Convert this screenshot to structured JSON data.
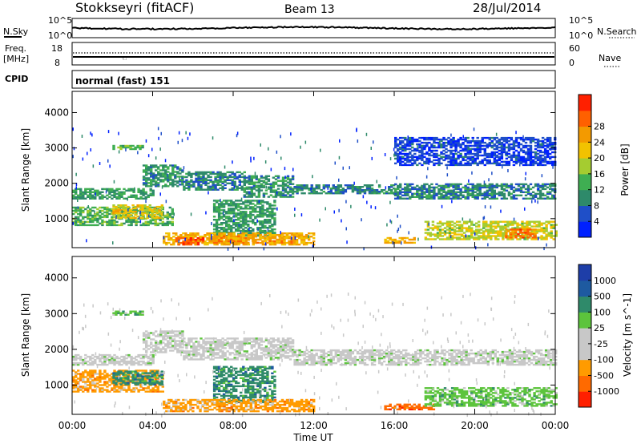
{
  "header": {
    "station": "Stokkseyri (fitACF)",
    "beam": "Beam 13",
    "date": "28/Jul/2014"
  },
  "noise_panel": {
    "left_label": "N.Sky",
    "right_label": "N.Search",
    "ticks": [
      "10^5",
      "10^0"
    ]
  },
  "freq_panel": {
    "left_label": "Freq.",
    "left_unit": "[MHz]",
    "left_ticks": [
      "18",
      "8"
    ],
    "right_label": "Nave",
    "right_ticks": [
      "60",
      "0"
    ],
    "cpid_label": "CPID"
  },
  "mode_text": "normal (fast) 151",
  "x_axis": {
    "label": "Time UT",
    "ticks": [
      "00:00",
      "04:00",
      "08:00",
      "12:00",
      "16:00",
      "20:00",
      "00:00"
    ]
  },
  "chart_data": [
    {
      "type": "heatmap",
      "title": "",
      "xlabel": "Time UT",
      "ylabel": "Slant Range [km]",
      "x": [
        0,
        24
      ],
      "ylim": [
        180,
        4600
      ],
      "yticks": [
        "1000",
        "2000",
        "3000",
        "4000"
      ],
      "colorbar": {
        "label": "Power [dB]",
        "ticks": [
          "4",
          "8",
          "12",
          "16",
          "20",
          "24",
          "28"
        ],
        "range": [
          0,
          30
        ],
        "colors": [
          "#0020ff",
          "#1f4fc8",
          "#2e8a6a",
          "#3fae52",
          "#a5cc30",
          "#f2c200",
          "#f39a00",
          "#ff6000",
          "#ff2000"
        ]
      },
      "bands": [
        {
          "t0": 0.0,
          "t1": 4.0,
          "r0": 1550,
          "r1": 1850,
          "level": 10
        },
        {
          "t0": 3.5,
          "t1": 5.5,
          "r0": 1900,
          "r1": 2500,
          "level": 9
        },
        {
          "t0": 5.5,
          "t1": 8.5,
          "r0": 1800,
          "r1": 2300,
          "level": 8
        },
        {
          "t0": 8.5,
          "t1": 11.0,
          "r0": 1600,
          "r1": 2200,
          "level": 9
        },
        {
          "t0": 11.0,
          "t1": 16.0,
          "r0": 1700,
          "r1": 1950,
          "level": 8
        },
        {
          "t0": 16.0,
          "t1": 24.0,
          "r0": 1550,
          "r1": 2000,
          "level": 8
        },
        {
          "t0": 0.0,
          "t1": 5.0,
          "r0": 800,
          "r1": 1300,
          "level": 12
        },
        {
          "t0": 2.0,
          "t1": 4.5,
          "r0": 1000,
          "r1": 1400,
          "level": 18
        },
        {
          "t0": 7.0,
          "t1": 10.0,
          "r0": 500,
          "r1": 1500,
          "level": 10
        },
        {
          "t0": 4.5,
          "t1": 12.0,
          "r0": 250,
          "r1": 600,
          "level": 20
        },
        {
          "t0": 5.0,
          "t1": 6.5,
          "r0": 250,
          "r1": 450,
          "level": 26
        },
        {
          "t0": 7.0,
          "t1": 11.0,
          "r0": 300,
          "r1": 500,
          "level": 22
        },
        {
          "t0": 15.5,
          "t1": 17.0,
          "r0": 300,
          "r1": 450,
          "level": 20
        },
        {
          "t0": 17.5,
          "t1": 24.0,
          "r0": 400,
          "r1": 900,
          "level": 16
        },
        {
          "t0": 21.5,
          "t1": 23.0,
          "r0": 450,
          "r1": 700,
          "level": 24
        },
        {
          "t0": 2.0,
          "t1": 3.5,
          "r0": 2950,
          "r1": 3050,
          "level": 12
        },
        {
          "t0": 16.0,
          "t1": 24.0,
          "r0": 2500,
          "r1": 3300,
          "level": 4
        }
      ]
    },
    {
      "type": "heatmap",
      "title": "",
      "xlabel": "Time UT",
      "ylabel": "Slant Range [km]",
      "x": [
        0,
        24
      ],
      "ylim": [
        180,
        4600
      ],
      "yticks": [
        "1000",
        "2000",
        "3000",
        "4000"
      ],
      "colorbar": {
        "label": "Velocity [m s^-1]",
        "ticks": [
          "1000",
          "500",
          "100",
          "25",
          "-25",
          "-100",
          "-500",
          "-1000"
        ],
        "colors": [
          "#1e3ea8",
          "#1e5aa0",
          "#2f8a6a",
          "#5cc43c",
          "#c8c8c8",
          "#c8c8c8",
          "#ff9b00",
          "#ff6a00",
          "#ff2000"
        ]
      },
      "bands": [
        {
          "t0": 0.0,
          "t1": 4.0,
          "r0": 1550,
          "r1": 1850,
          "level": 4
        },
        {
          "t0": 3.5,
          "t1": 5.5,
          "r0": 1900,
          "r1": 2500,
          "level": 4
        },
        {
          "t0": 5.5,
          "t1": 11.0,
          "r0": 1700,
          "r1": 2300,
          "level": 4
        },
        {
          "t0": 11.0,
          "t1": 24.0,
          "r0": 1550,
          "r1": 2000,
          "level": 4
        },
        {
          "t0": 0.0,
          "t1": 4.5,
          "r0": 800,
          "r1": 1400,
          "level": 6
        },
        {
          "t0": 2.0,
          "t1": 4.5,
          "r0": 1000,
          "r1": 1400,
          "level": 2
        },
        {
          "t0": 7.0,
          "t1": 10.0,
          "r0": 500,
          "r1": 1500,
          "level": 2
        },
        {
          "t0": 4.5,
          "t1": 12.0,
          "r0": 250,
          "r1": 600,
          "level": 6
        },
        {
          "t0": 15.5,
          "t1": 18.0,
          "r0": 300,
          "r1": 450,
          "level": 7
        },
        {
          "t0": 17.5,
          "t1": 24.0,
          "r0": 400,
          "r1": 900,
          "level": 3
        },
        {
          "t0": 2.0,
          "t1": 3.5,
          "r0": 2950,
          "r1": 3050,
          "level": 3
        }
      ]
    }
  ]
}
